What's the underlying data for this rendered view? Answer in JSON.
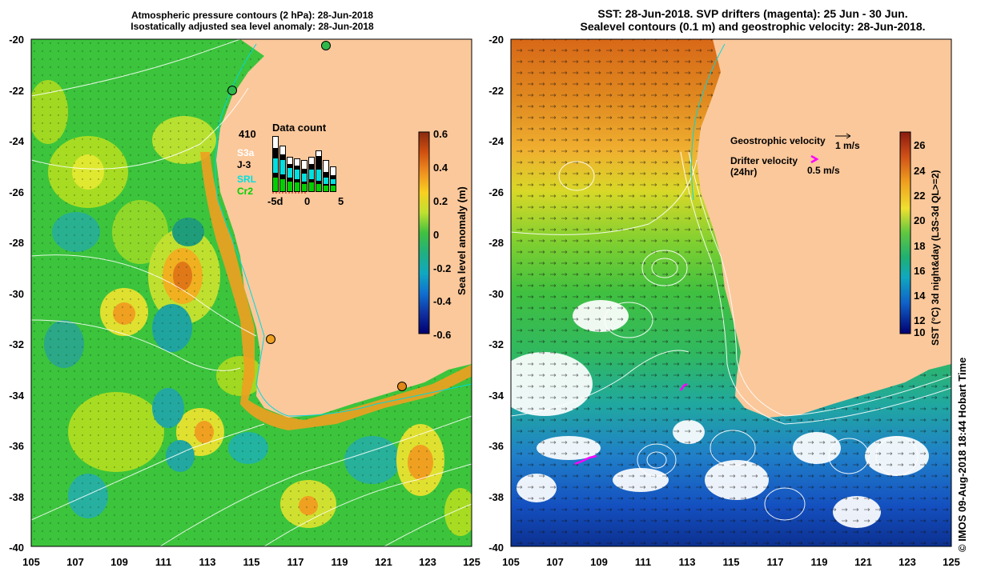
{
  "left_panel": {
    "title_line1": "Atmospheric pressure contours (2 hPa): 28-Jun-2018",
    "title_line2": "Isostatically adjusted sea level anomaly: 28-Jun-2018",
    "y_ticks": [
      "-20",
      "-22",
      "-24",
      "-26",
      "-28",
      "-30",
      "-32",
      "-34",
      "-36",
      "-38",
      "-40"
    ],
    "x_ticks": [
      "105",
      "107",
      "109",
      "111",
      "113",
      "115",
      "117",
      "119",
      "121",
      "123",
      "125"
    ],
    "colorbar": {
      "label": "Sea level anomaly (m)",
      "ticks": [
        "0.6",
        "0.4",
        "0.2",
        "0",
        "-0.2",
        "-0.4",
        "-0.6"
      ]
    },
    "data_count": {
      "title": "Data count",
      "total": "410",
      "legend": [
        "S3a",
        "J-3",
        "SRL",
        "Cr2"
      ],
      "legend_colors": [
        "#ffffff",
        "#000000",
        "#00e0e0",
        "#00d000"
      ],
      "x_labels": [
        "-5d",
        "0",
        "5"
      ]
    },
    "tide_gauges": [
      "gauge-1",
      "gauge-2",
      "gauge-3",
      "gauge-4"
    ]
  },
  "right_panel": {
    "title_line1": "SST: 28-Jun-2018. SVP drifters (magenta): 25 Jun - 30 Jun.",
    "title_line2": "Sealevel contours (0.1 m) and geostrophic velocity: 28-Jun-2018.",
    "y_ticks": [
      "-20",
      "-22",
      "-24",
      "-26",
      "-28",
      "-30",
      "-32",
      "-34",
      "-36",
      "-38",
      "-40"
    ],
    "x_ticks": [
      "105",
      "107",
      "109",
      "111",
      "113",
      "115",
      "117",
      "119",
      "121",
      "123",
      "125"
    ],
    "colorbar": {
      "label": "SST (°C) 3d night&day (L3S-3d QL>=2)",
      "ticks": [
        "26",
        "24",
        "22",
        "20",
        "18",
        "16",
        "14",
        "12",
        "10"
      ]
    },
    "legend": {
      "geo_label": "Geostrophic velocity",
      "geo_scale": "1 m/s",
      "drifter_label": "Drifter velocity",
      "drifter_sub": "(24hr)",
      "drifter_scale": "0.5 m/s"
    }
  },
  "credit": "© IMOS 09-Aug-2018 18:44 Hobart Time",
  "colors": {
    "land": "#fbc89b",
    "magenta": "#ff00ff",
    "contour": "#ffffff"
  }
}
